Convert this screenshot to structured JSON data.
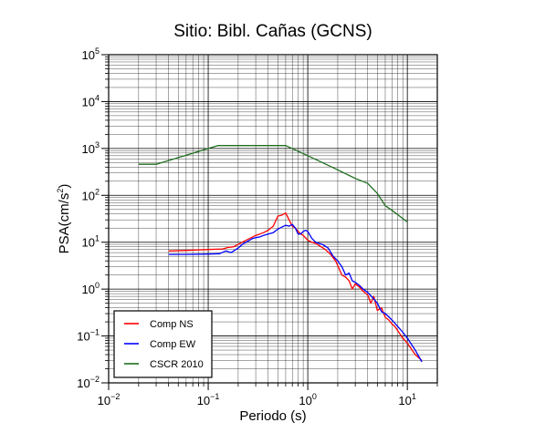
{
  "chart_data": {
    "type": "line",
    "title": "Sitio: Bibl. Cañas (GCNS)",
    "xlabel": "Periodo (s)",
    "ylabel": "PSA(cm/s2)",
    "xscale": "log",
    "yscale": "log",
    "xlim": [
      0.01,
      20
    ],
    "ylim": [
      0.01,
      100000
    ],
    "xticks": [
      "10-2",
      "10-1",
      "100",
      "101"
    ],
    "yticks": [
      "10-2",
      "10-1",
      "100",
      "101",
      "102",
      "103",
      "104",
      "105"
    ],
    "grid": true,
    "legend_position": "bottom-left",
    "series": [
      {
        "name": "Comp NS",
        "color": "#ff0000",
        "x": [
          0.04,
          0.06,
          0.1,
          0.14,
          0.16,
          0.18,
          0.2,
          0.22,
          0.25,
          0.28,
          0.3,
          0.33,
          0.36,
          0.4,
          0.45,
          0.5,
          0.55,
          0.6,
          0.65,
          0.7,
          0.75,
          0.8,
          0.85,
          0.9,
          1.0,
          1.1,
          1.2,
          1.3,
          1.5,
          1.7,
          1.9,
          2.0,
          2.2,
          2.4,
          2.6,
          2.8,
          3.0,
          3.3,
          3.6,
          4.0,
          4.3,
          4.6,
          5.0,
          5.5,
          6.0,
          6.5,
          7.0,
          7.5,
          8.0,
          9.0,
          10.0,
          12.0,
          14.0
        ],
        "y": [
          6.5,
          6.7,
          7.0,
          7.2,
          7.8,
          8.0,
          9.0,
          10.0,
          11.5,
          13.0,
          14.0,
          15.0,
          16.0,
          18.0,
          22.0,
          36.0,
          38.0,
          42.0,
          30.0,
          22.0,
          20.0,
          17.0,
          15.0,
          14.0,
          11.0,
          10.0,
          9.5,
          8.5,
          7.0,
          5.5,
          4.0,
          3.2,
          2.0,
          1.8,
          1.5,
          1.0,
          1.3,
          1.1,
          0.9,
          0.75,
          0.5,
          0.7,
          0.35,
          0.4,
          0.25,
          0.22,
          0.18,
          0.16,
          0.13,
          0.09,
          0.07,
          0.04,
          0.03
        ]
      },
      {
        "name": "Comp EW",
        "color": "#0000ff",
        "x": [
          0.04,
          0.06,
          0.1,
          0.13,
          0.15,
          0.17,
          0.2,
          0.22,
          0.25,
          0.28,
          0.3,
          0.33,
          0.36,
          0.4,
          0.45,
          0.5,
          0.55,
          0.6,
          0.65,
          0.7,
          0.75,
          0.8,
          0.85,
          0.9,
          0.95,
          1.0,
          1.1,
          1.2,
          1.4,
          1.6,
          1.8,
          2.0,
          2.2,
          2.4,
          2.6,
          2.8,
          3.0,
          3.3,
          3.6,
          4.0,
          4.5,
          5.0,
          5.5,
          6.0,
          7.0,
          8.0,
          9.0,
          10.0,
          12.0,
          14.0
        ],
        "y": [
          5.5,
          5.5,
          5.6,
          5.7,
          6.5,
          6.0,
          7.5,
          9.0,
          10.5,
          12.0,
          12.5,
          13.0,
          14.0,
          15.0,
          16.0,
          19.0,
          21.0,
          23.0,
          22.0,
          24.0,
          20.0,
          15.0,
          15.0,
          17.0,
          18.0,
          17.0,
          12.0,
          10.0,
          9.0,
          7.5,
          5.0,
          4.0,
          3.0,
          2.0,
          2.2,
          1.5,
          1.4,
          1.2,
          1.0,
          0.85,
          0.65,
          0.5,
          0.33,
          0.3,
          0.22,
          0.16,
          0.12,
          0.09,
          0.05,
          0.028
        ]
      },
      {
        "name": "CSCR 2010",
        "color": "#1e6e1e",
        "x": [
          0.02,
          0.03,
          0.125,
          0.6,
          1.0,
          2.0,
          3.0,
          4.0,
          5.0,
          6.0,
          7.0,
          10.0
        ],
        "y": [
          460,
          460,
          1150,
          1150,
          700,
          350,
          230,
          180,
          110,
          60,
          48,
          27
        ]
      }
    ]
  }
}
